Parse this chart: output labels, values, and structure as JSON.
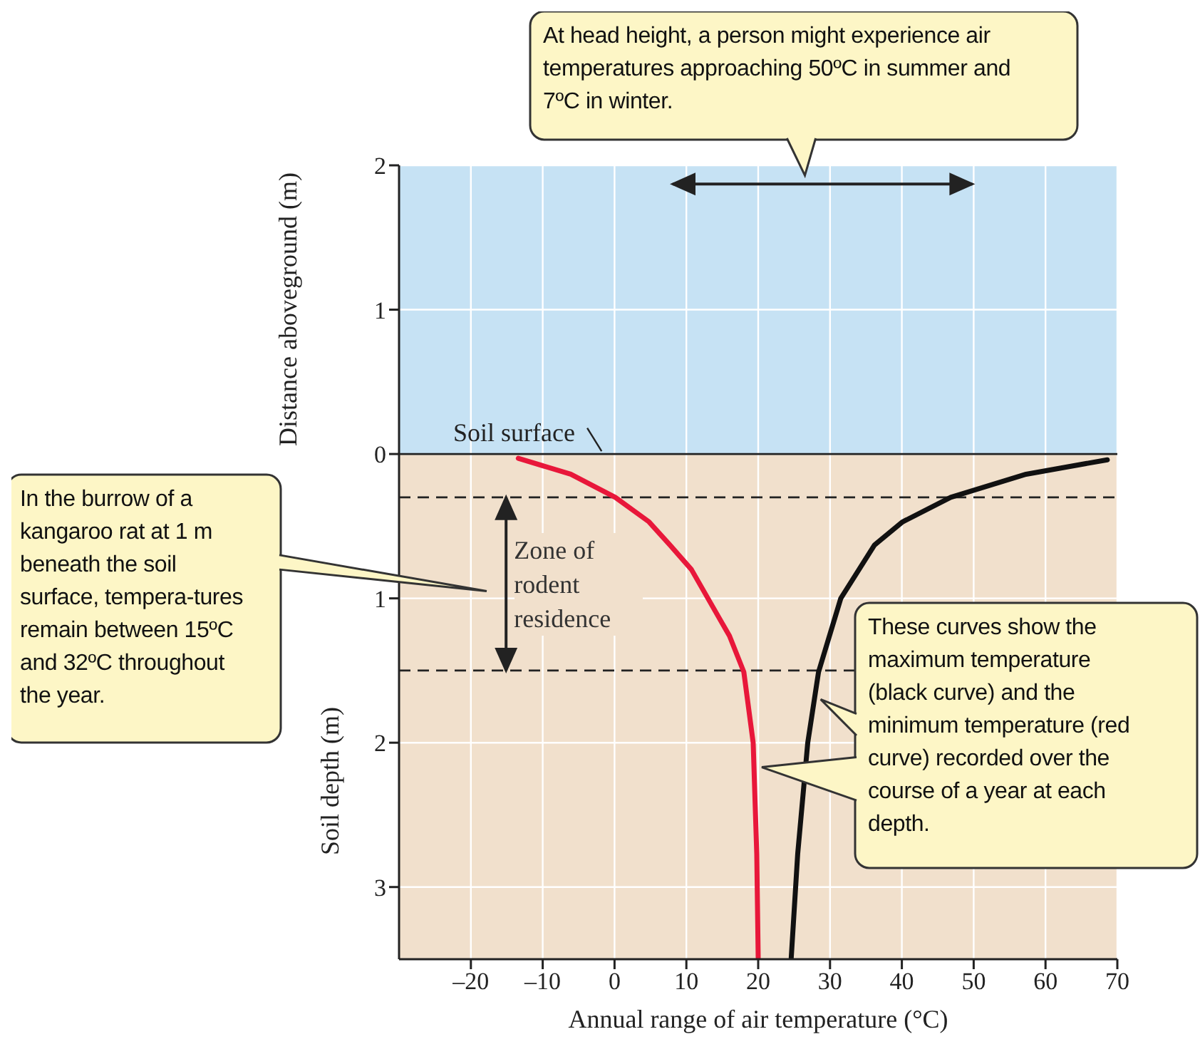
{
  "chart_data": {
    "type": "line",
    "xlabel": "Annual range of air temperature (°C)",
    "ylabel": "Soil depth (m)",
    "xlim": [
      -30,
      70
    ],
    "xticks": [
      {
        "value": -20,
        "label": "–20"
      },
      {
        "value": -10,
        "label": "–10"
      },
      0,
      10,
      20,
      30,
      40,
      50,
      60,
      70
    ],
    "ylim": [
      -3.5,
      2
    ],
    "yticks": [
      2,
      1,
      0,
      {
        "value": -1,
        "label": "1"
      },
      {
        "value": -2,
        "label": "2"
      },
      {
        "value": -3,
        "label": "3"
      }
    ],
    "grid": true,
    "legend": false,
    "marker": "none",
    "line_style": "solid",
    "series": [
      {
        "color": "#e8173a",
        "x": [
          -13.4,
          -6.1,
          0.1,
          4.8,
          7.7,
          10.7,
          13.0,
          16.0,
          18.0,
          19.3,
          19.8,
          20.0
        ],
        "values": [
          -0.03,
          -0.14,
          -0.3,
          -0.47,
          -0.63,
          -0.8,
          -1.0,
          -1.26,
          -1.51,
          -2.0,
          -2.77,
          -3.49
        ]
      },
      {
        "color": "#111111",
        "x": [
          68.6,
          57.3,
          46.8,
          40.1,
          36.2,
          31.5,
          28.4,
          26.9,
          25.5,
          24.6
        ],
        "values": [
          -0.04,
          -0.14,
          -0.3,
          -0.47,
          -0.63,
          -1.0,
          -1.51,
          -2.0,
          -2.77,
          -3.49
        ]
      }
    ],
    "bands": [
      {
        "axis": "y",
        "from": 0,
        "to": 2,
        "color": "#c6e2f4"
      },
      {
        "axis": "y",
        "from": -3.5,
        "to": 0,
        "color": "#f1e0cc"
      }
    ],
    "ref_lines": [
      {
        "axis": "y",
        "value": 0,
        "label": "Soil surface",
        "color": "#222222",
        "line_style": "solid"
      },
      {
        "axis": "y",
        "value": -0.3,
        "color": "#222222",
        "line_style": "dashed"
      },
      {
        "axis": "y",
        "value": -1.5,
        "color": "#222222",
        "line_style": "dashed"
      }
    ],
    "annotations": [
      "At head height, a person might experience air temperatures approaching 50ºC in summer and 7ºC in winter.",
      "In the burrow of a kangaroo rat at 1 m beneath the soil surface, tempera-tures remain between 15ºC and 32ºC throughout the year.",
      "These curves show the maximum temperature (black curve) and the minimum temperature (red curve) recorded over the course of a year at each depth.",
      "Distance aboveground (m)",
      "Zone of rodent residence"
    ]
  }
}
